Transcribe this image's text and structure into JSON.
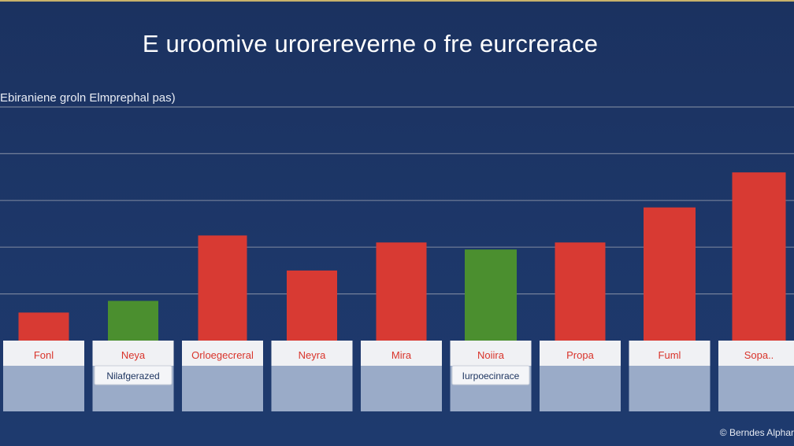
{
  "chart_data": {
    "type": "bar",
    "title": "E uroomive urorereverne o fre eurcrerace",
    "ylabel": "Ebiraniene groln Elmprephal pas)",
    "xlabel": "",
    "categories": [
      "Fonl",
      "Neya",
      "Orloegecreral",
      "Neyra",
      "Mira",
      "Noiira",
      "Propa",
      "Fuml",
      "Sopa.."
    ],
    "sub_labels": [
      "",
      "Nilafgerazed",
      "",
      "",
      "",
      "Iurpoecinrace",
      "",
      "",
      ""
    ],
    "values": [
      12,
      17,
      45,
      30,
      42,
      39,
      42,
      57,
      72
    ],
    "bar_colors": [
      "#d83a33",
      "#4b8f2f",
      "#d83a33",
      "#d83a33",
      "#d83a33",
      "#4b8f2f",
      "#d83a33",
      "#d83a33",
      "#d83a33"
    ],
    "ylim": [
      0,
      100
    ],
    "grid": true,
    "legend": "none",
    "footer": "© Berndes Alphar",
    "colors": {
      "background": "#1d3769",
      "bar_red": "#d83a33",
      "bar_green": "#4b8f2f",
      "gridline": "#8a93a8",
      "tick_text": "#d9342b",
      "label_box": "#f0f1f4",
      "label_panel": "#9aabc8"
    }
  }
}
